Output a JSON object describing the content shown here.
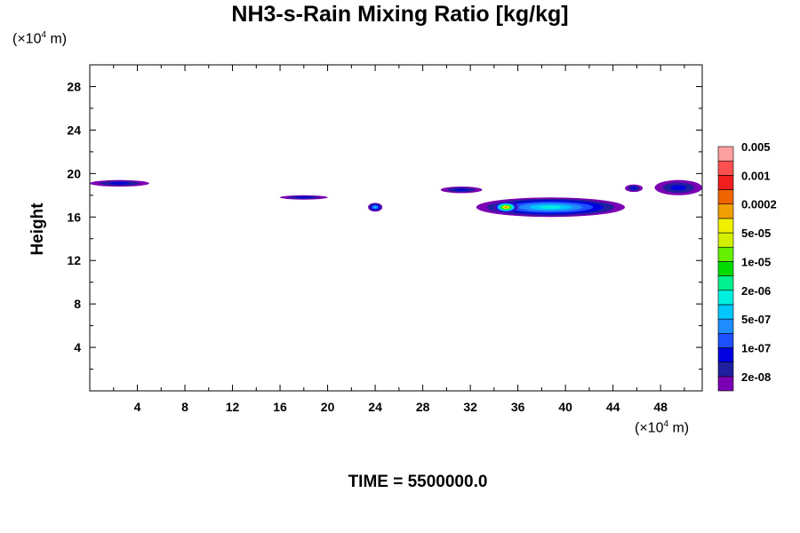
{
  "title": "NH3-s-Rain Mixing Ratio [kg/kg]",
  "footer": "TIME = 5500000.0",
  "chart_data": {
    "type": "heatmap",
    "title": "NH3-s-Rain Mixing Ratio [kg/kg]",
    "xlabel": "",
    "ylabel": "Height",
    "x_unit": {
      "prefix": "(×10",
      "exp": "4",
      "suffix": " m)"
    },
    "y_unit": {
      "prefix": "(×10",
      "exp": "4",
      "suffix": " m)"
    },
    "xlim": [
      0,
      51.5
    ],
    "ylim": [
      0,
      30
    ],
    "xticks": [
      4,
      8,
      12,
      16,
      20,
      24,
      28,
      32,
      36,
      40,
      44,
      48
    ],
    "yticks": [
      4,
      8,
      12,
      16,
      20,
      24,
      28
    ],
    "colorbar": {
      "colors": [
        "#7b00b4",
        "#1f1fa0",
        "#0000e0",
        "#1e50ff",
        "#1e8cff",
        "#00c8ff",
        "#00f0e0",
        "#00f090",
        "#00dc00",
        "#64f000",
        "#d2f000",
        "#f0f000",
        "#f0a000",
        "#f06400",
        "#f01e1e",
        "#ff5050",
        "#ffa0a0"
      ],
      "labels": [
        "2e-08",
        "1e-07",
        "5e-07",
        "2e-06",
        "1e-05",
        "5e-05",
        "0.0002",
        "0.001",
        "0.005"
      ]
    },
    "regions": [
      {
        "x": [
          0,
          5
        ],
        "y": [
          18.8,
          19.4
        ],
        "level": 2
      },
      {
        "x": [
          16,
          20
        ],
        "y": [
          17.6,
          18.0
        ],
        "level": 2
      },
      {
        "x": [
          23.4,
          24.6
        ],
        "y": [
          16.5,
          17.3
        ],
        "level": 5
      },
      {
        "x": [
          29.5,
          33
        ],
        "y": [
          18.2,
          18.8
        ],
        "level": 2
      },
      {
        "x": [
          32.5,
          45
        ],
        "y": [
          16,
          17.8
        ],
        "level": 6
      },
      {
        "x": [
          34,
          36
        ],
        "y": [
          16.4,
          17.4
        ],
        "level": 13
      },
      {
        "x": [
          45,
          46.5
        ],
        "y": [
          18.3,
          19.0
        ],
        "level": 2
      },
      {
        "x": [
          47.5,
          51.5
        ],
        "y": [
          18.0,
          19.4
        ],
        "level": 2
      }
    ]
  }
}
